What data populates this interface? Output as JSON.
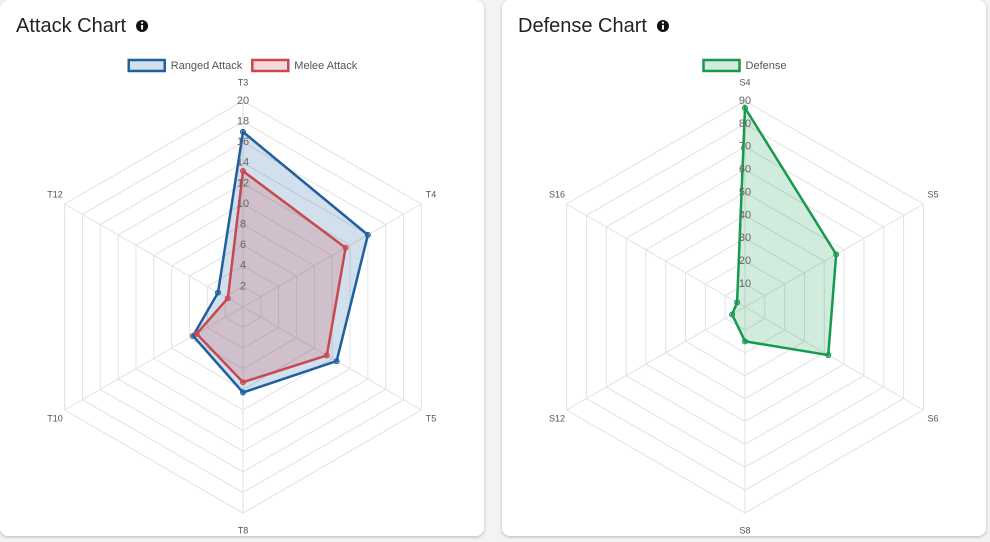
{
  "chart_data": [
    {
      "type": "radar",
      "title": "Attack Chart",
      "categories": [
        "T3",
        "T4",
        "T5",
        "T8",
        "T10",
        "T12"
      ],
      "series": [
        {
          "name": "Ranged Attack",
          "color": "#1f5f9e",
          "values": [
            17,
            14,
            10.5,
            8.3,
            5.6,
            2.8
          ]
        },
        {
          "name": "Melee Attack",
          "color": "#c9474f",
          "values": [
            13.2,
            11.5,
            9.4,
            7.3,
            5.2,
            1.7
          ]
        }
      ],
      "rlim": [
        0,
        20
      ],
      "rticks": [
        2,
        4,
        6,
        8,
        10,
        12,
        14,
        16,
        18,
        20
      ],
      "grid": true,
      "legend": "top"
    },
    {
      "type": "radar",
      "title": "Defense Chart",
      "categories": [
        "S4",
        "S5",
        "S6",
        "S8",
        "S12",
        "S16"
      ],
      "series": [
        {
          "name": "Defense",
          "color": "#179a4f",
          "values": [
            87,
            46,
            42,
            15,
            6.5,
            4
          ]
        }
      ],
      "rlim": [
        0,
        90
      ],
      "rticks": [
        10,
        20,
        30,
        40,
        50,
        60,
        70,
        80,
        90
      ],
      "grid": true,
      "legend": "top"
    }
  ]
}
